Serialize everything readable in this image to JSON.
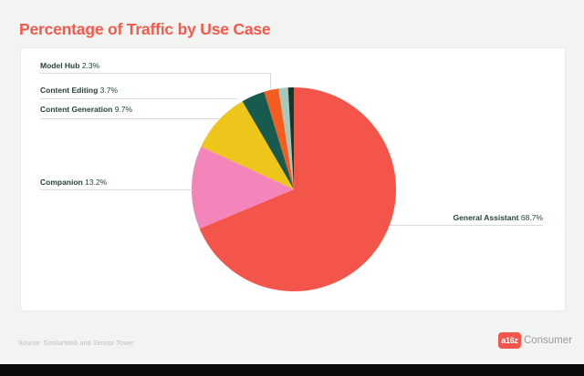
{
  "page": {
    "title": "Percentage of Traffic by Use Case",
    "source": "Source: SimilarWeb and Sensor Tower",
    "logo": {
      "badge": "a16z",
      "brand": "Consumer"
    }
  },
  "chart_data": {
    "type": "pie",
    "title": "Percentage of Traffic by Use Case",
    "unit": "%",
    "start_angle_deg": 0,
    "direction": "clockwise",
    "legend_position": "callout-labels",
    "slices": [
      {
        "label": "General Assistant",
        "value": 68.7,
        "display": "68.7%",
        "color": "#F4554B"
      },
      {
        "label": "Companion",
        "value": 13.2,
        "display": "13.2%",
        "color": "#F485BA"
      },
      {
        "label": "Content Generation",
        "value": 9.7,
        "display": "9.7%",
        "color": "#EEC51A"
      },
      {
        "label": "Content Editing",
        "value": 3.7,
        "display": "3.7%",
        "color": "#175A50"
      },
      {
        "label": "Model Hub",
        "value": 2.3,
        "display": "2.3%",
        "color": "#F55C20"
      },
      {
        "label": "",
        "value": 1.5,
        "display": "",
        "color": "#A8C8BD"
      },
      {
        "label": "",
        "value": 0.9,
        "display": "",
        "color": "#0E392C"
      }
    ]
  },
  "colors": {
    "accent": "#F6594C",
    "background": "#F2F4F2",
    "panel": "#FFFFFF",
    "label_text": "#27403B",
    "leader_line": "#D8DCDA",
    "source_text": "#B9BEC1",
    "footer_bar": "#0A0A0B"
  }
}
